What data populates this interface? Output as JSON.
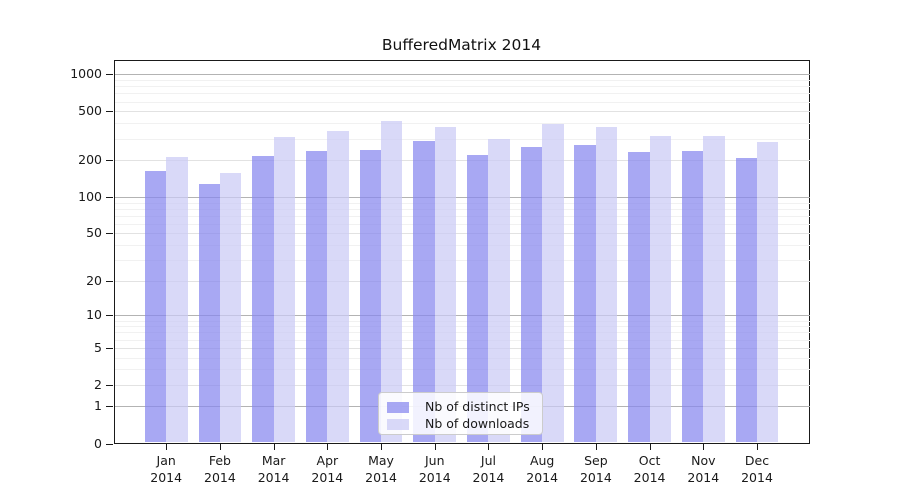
{
  "title": "BufferedMatrix 2014",
  "chart_data": {
    "type": "bar",
    "title": "BufferedMatrix 2014",
    "categories": [
      "Jan",
      "Feb",
      "Mar",
      "Apr",
      "May",
      "Jun",
      "Jul",
      "Aug",
      "Sep",
      "Oct",
      "Nov",
      "Dec"
    ],
    "category_year": "2014",
    "series": [
      {
        "name": "Nb of distinct IPs",
        "color": "rgba(134,134,238,0.72)",
        "values": [
          162,
          127,
          217,
          239,
          244,
          287,
          220,
          256,
          264,
          235,
          237,
          207
        ]
      },
      {
        "name": "Nb of downloads",
        "color": "rgba(202,202,245,0.72)",
        "values": [
          213,
          157,
          311,
          344,
          418,
          376,
          298,
          395,
          376,
          317,
          318,
          281
        ]
      }
    ],
    "xlabel": "",
    "ylabel": "",
    "yscale": "log10(value+1)",
    "ylim": [
      0,
      1350
    ],
    "yticks": [
      0,
      1,
      2,
      5,
      10,
      20,
      50,
      100,
      200,
      500,
      1000
    ],
    "gridlines": {
      "strong": [
        1,
        10,
        100,
        1000
      ],
      "light": [
        2,
        5,
        20,
        50,
        200,
        500
      ],
      "minor": [
        3,
        4,
        6,
        7,
        8,
        9,
        30,
        40,
        60,
        70,
        80,
        90,
        300,
        400,
        600,
        700,
        800,
        900
      ],
      "strong_color": "#b3b3b3",
      "light_color": "#e2e2e2",
      "minor_color": "#f1f1f1"
    },
    "legend_position": "inside-bottom-center"
  }
}
